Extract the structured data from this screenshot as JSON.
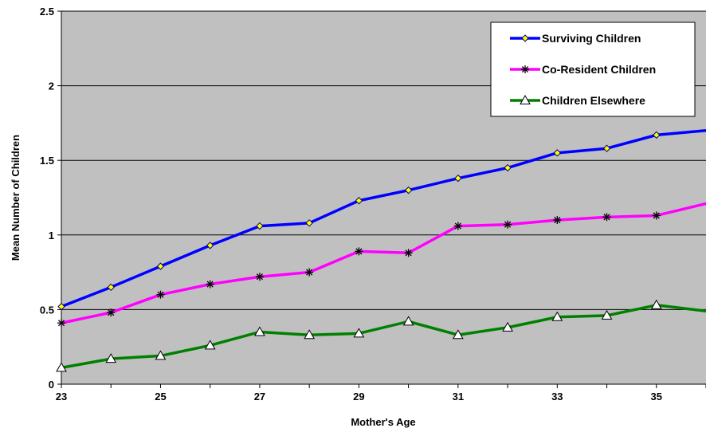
{
  "chart_data": {
    "type": "line",
    "xlabel": "Mother's Age",
    "ylabel": "Mean Number of Children",
    "xlim": [
      23,
      36
    ],
    "ylim": [
      0,
      2.5
    ],
    "x_ticks": [
      "23",
      "25",
      "27",
      "29",
      "31",
      "33",
      "35"
    ],
    "y_ticks": [
      "0",
      "0.5",
      "1",
      "1.5",
      "2",
      "2.5"
    ],
    "grid": "horizontal",
    "legend_position": "top-right",
    "plot_background": "#c0c0c0",
    "x": [
      23,
      24,
      25,
      26,
      27,
      28,
      29,
      30,
      31,
      32,
      33,
      34,
      35,
      36
    ],
    "series": [
      {
        "name": "Surviving Children",
        "color": "#0000ff",
        "marker": "diamond",
        "marker_fill": "#ffff00",
        "values": [
          0.52,
          0.65,
          0.79,
          0.93,
          1.06,
          1.08,
          1.23,
          1.3,
          1.38,
          1.45,
          1.55,
          1.58,
          1.67,
          1.7
        ]
      },
      {
        "name": "Co-Resident Children",
        "color": "#ff00ff",
        "marker": "asterisk",
        "marker_fill": "#000000",
        "values": [
          0.41,
          0.48,
          0.6,
          0.67,
          0.72,
          0.75,
          0.89,
          0.88,
          1.06,
          1.07,
          1.1,
          1.12,
          1.13,
          1.21
        ]
      },
      {
        "name": "Children Elsewhere",
        "color": "#008000",
        "marker": "triangle",
        "marker_fill": "#ffffff",
        "values": [
          0.11,
          0.17,
          0.19,
          0.26,
          0.35,
          0.33,
          0.34,
          0.42,
          0.33,
          0.38,
          0.45,
          0.46,
          0.53,
          0.49
        ]
      }
    ]
  }
}
